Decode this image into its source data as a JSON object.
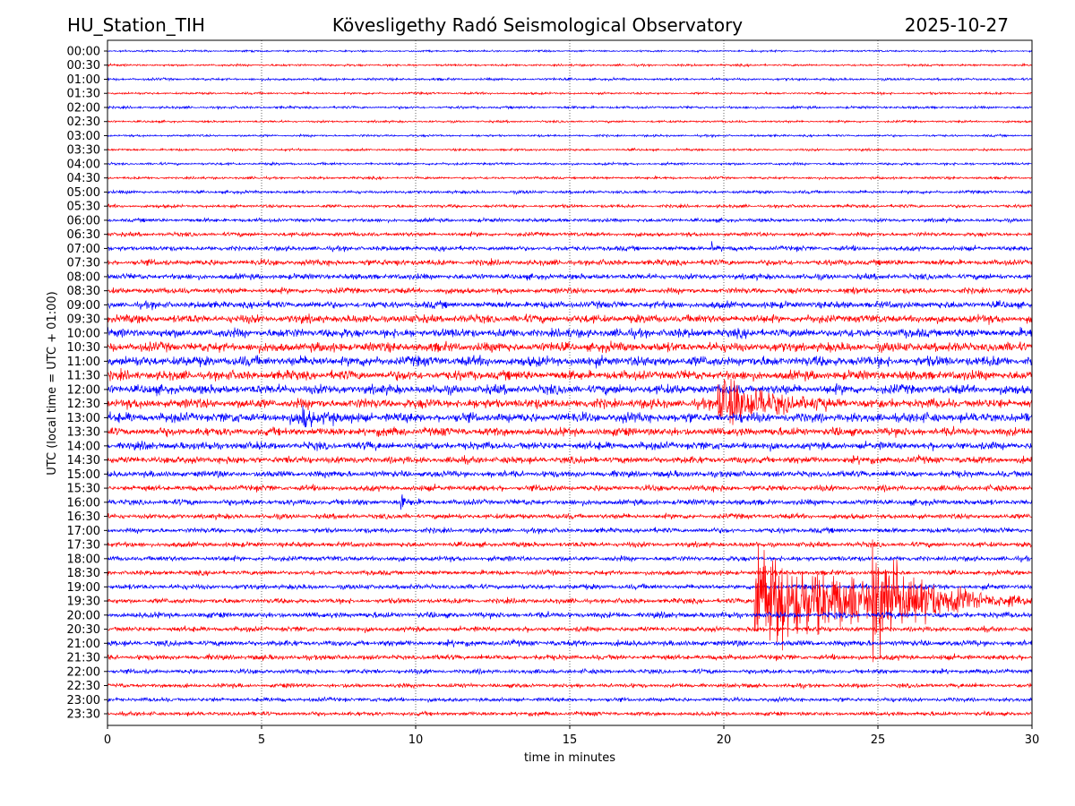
{
  "chart_data": {
    "type": "line",
    "title_left": "HU_Station_TIH",
    "title": "Kövesligethy Radó Seismological Observatory",
    "title_right": "2025-10-27",
    "xlabel": "time in minutes",
    "ylabel": "UTC (local time = UTC + 01:00)",
    "xlim": [
      0,
      30
    ],
    "xticks": [
      "0",
      "5",
      "10",
      "15",
      "20",
      "25",
      "30"
    ],
    "grid": "vertical dotted at 5-minute intervals",
    "colors": [
      "#0000ff",
      "#ff0000"
    ],
    "rows": [
      "00:00",
      "00:30",
      "01:00",
      "01:30",
      "02:00",
      "02:30",
      "03:00",
      "03:30",
      "04:00",
      "04:30",
      "05:00",
      "05:30",
      "06:00",
      "06:30",
      "07:00",
      "07:30",
      "08:00",
      "08:30",
      "09:00",
      "09:30",
      "10:00",
      "10:30",
      "11:00",
      "11:30",
      "12:00",
      "12:30",
      "13:00",
      "13:30",
      "14:00",
      "14:30",
      "15:00",
      "15:30",
      "16:00",
      "16:30",
      "17:00",
      "17:30",
      "18:00",
      "18:30",
      "19:00",
      "19:30",
      "20:00",
      "20:30",
      "21:00",
      "21:30",
      "22:00",
      "22:30",
      "23:00",
      "23:30"
    ],
    "noise_levels": [
      0.6,
      0.7,
      0.8,
      0.7,
      0.8,
      0.7,
      0.7,
      0.7,
      0.8,
      0.8,
      1.0,
      1.0,
      1.2,
      1.3,
      1.5,
      1.8,
      1.8,
      1.8,
      2.2,
      2.6,
      2.8,
      3.0,
      3.2,
      3.0,
      3.0,
      3.0,
      3.0,
      2.6,
      2.4,
      2.2,
      2.0,
      1.8,
      1.8,
      1.6,
      1.6,
      1.6,
      1.6,
      1.5,
      1.6,
      1.6,
      1.8,
      1.6,
      1.8,
      1.6,
      1.4,
      1.3,
      1.3,
      1.3
    ],
    "events": [
      {
        "row": "07:00",
        "start_min": 19.6,
        "amplitude": 5,
        "duration_min": 0.3
      },
      {
        "row": "07:30",
        "start_min": 9.4,
        "amplitude": 5,
        "duration_min": 0.3
      },
      {
        "row": "08:30",
        "start_min": 24.0,
        "amplitude": 5,
        "duration_min": 0.3
      },
      {
        "row": "13:00",
        "start_min": 6.2,
        "amplitude": 12,
        "duration_min": 1.5
      },
      {
        "row": "12:30",
        "start_min": 19.8,
        "amplitude": 30,
        "duration_min": 3.5
      },
      {
        "row": "16:00",
        "start_min": 9.5,
        "amplitude": 7,
        "duration_min": 0.4
      },
      {
        "row": "19:30",
        "start_min": 21.0,
        "amplitude": 60,
        "duration_min": 9
      },
      {
        "row": "19:30",
        "start_min": 24.8,
        "amplitude": 55,
        "duration_min": 3
      }
    ]
  }
}
